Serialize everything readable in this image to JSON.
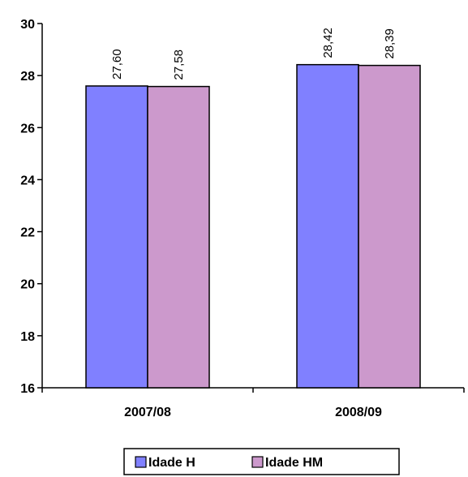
{
  "chart_data": {
    "type": "bar",
    "categories": [
      "2007/08",
      "2008/09"
    ],
    "series": [
      {
        "name": "Idade H",
        "values": [
          27.6,
          28.42
        ],
        "labels": [
          "27,60",
          "28,42"
        ],
        "color": "#8080ff"
      },
      {
        "name": "Idade HM",
        "values": [
          27.58,
          28.39
        ],
        "labels": [
          "27,58",
          "28,39"
        ],
        "color": "#cc99cc"
      }
    ],
    "ylim": [
      16,
      30
    ],
    "yticks": [
      16,
      18,
      20,
      22,
      24,
      26,
      28,
      30
    ],
    "title": "",
    "xlabel": "",
    "ylabel": "",
    "grid": false,
    "legend": "bottom"
  }
}
